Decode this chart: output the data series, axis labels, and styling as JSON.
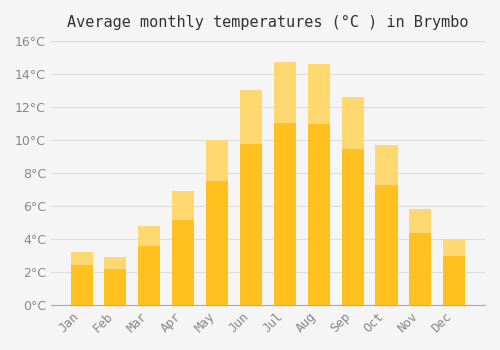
{
  "title": "Average monthly temperatures (°C ) in Brymbo",
  "months": [
    "Jan",
    "Feb",
    "Mar",
    "Apr",
    "May",
    "Jun",
    "Jul",
    "Aug",
    "Sep",
    "Oct",
    "Nov",
    "Dec"
  ],
  "values": [
    3.2,
    2.9,
    4.8,
    6.9,
    10.0,
    13.0,
    14.7,
    14.6,
    12.6,
    9.7,
    5.8,
    4.0
  ],
  "bar_color_main": "#FFC020",
  "bar_color_light": "#FFD870",
  "background_color": "#F5F5F5",
  "grid_color": "#DDDDDD",
  "title_color": "#333333",
  "tick_color": "#888888",
  "ylim": [
    0,
    16
  ],
  "yticks": [
    0,
    2,
    4,
    6,
    8,
    10,
    12,
    14,
    16
  ],
  "title_fontsize": 11,
  "tick_fontsize": 9
}
